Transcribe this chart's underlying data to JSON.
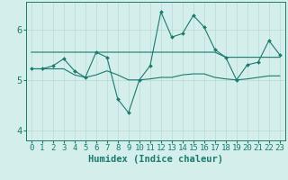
{
  "xlabel": "Humidex (Indice chaleur)",
  "ylabel": "",
  "bg_color": "#d4eeeb",
  "line_color": "#1a7a6e",
  "grid_color": "#b8dbd8",
  "xlim": [
    -0.5,
    23.5
  ],
  "ylim": [
    3.8,
    6.55
  ],
  "yticks": [
    4,
    5,
    6
  ],
  "xticks": [
    0,
    1,
    2,
    3,
    4,
    5,
    6,
    7,
    8,
    9,
    10,
    11,
    12,
    13,
    14,
    15,
    16,
    17,
    18,
    19,
    20,
    21,
    22,
    23
  ],
  "series1_x": [
    0,
    1,
    2,
    3,
    4,
    5,
    6,
    7,
    8,
    9,
    10,
    11,
    12,
    13,
    14,
    15,
    16,
    17,
    18,
    19,
    20,
    21,
    22,
    23
  ],
  "series1_y": [
    5.22,
    5.22,
    5.28,
    5.42,
    5.18,
    5.05,
    5.55,
    5.45,
    4.62,
    4.35,
    5.0,
    5.28,
    6.35,
    5.85,
    5.92,
    6.28,
    6.05,
    5.6,
    5.45,
    5.0,
    5.3,
    5.35,
    5.78,
    5.5
  ],
  "series2_x": [
    0,
    1,
    2,
    3,
    4,
    5,
    6,
    7,
    8,
    9,
    10,
    11,
    12,
    13,
    14,
    15,
    16,
    17,
    18,
    19,
    20,
    21,
    22,
    23
  ],
  "series2_y": [
    5.55,
    5.55,
    5.55,
    5.55,
    5.55,
    5.55,
    5.55,
    5.55,
    5.55,
    5.55,
    5.55,
    5.55,
    5.55,
    5.55,
    5.55,
    5.55,
    5.55,
    5.55,
    5.45,
    5.45,
    5.45,
    5.45,
    5.45,
    5.45
  ],
  "series3_x": [
    0,
    1,
    2,
    3,
    4,
    5,
    6,
    7,
    8,
    9,
    10,
    11,
    12,
    13,
    14,
    15,
    16,
    17,
    18,
    19,
    20,
    21,
    22,
    23
  ],
  "series3_y": [
    5.22,
    5.22,
    5.22,
    5.22,
    5.1,
    5.05,
    5.1,
    5.18,
    5.1,
    5.0,
    5.0,
    5.02,
    5.05,
    5.05,
    5.1,
    5.12,
    5.12,
    5.05,
    5.02,
    5.0,
    5.02,
    5.05,
    5.08,
    5.08
  ],
  "tick_fontsize": 6.5,
  "label_fontsize": 7.5
}
